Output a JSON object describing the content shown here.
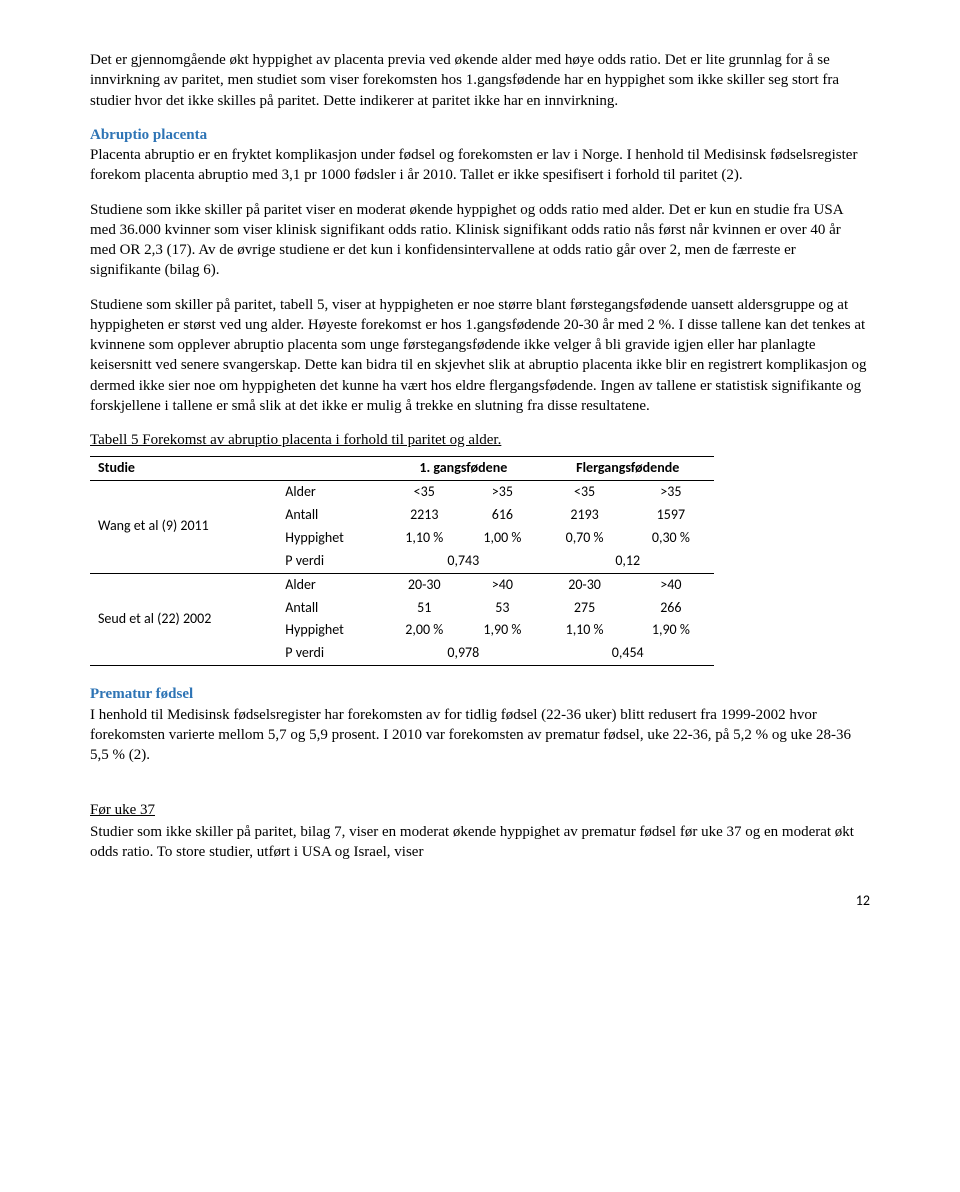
{
  "para1": "Det er gjennomgående økt hyppighet av placenta previa ved økende alder med høye odds ratio. Det er lite grunnlag for å se innvirkning av paritet, men studiet som viser forekomsten hos 1.gangsfødende har en hyppighet som ikke skiller seg stort fra studier hvor det ikke skilles på paritet. Dette indikerer at paritet ikke har en innvirkning.",
  "heading1": "Abruptio placenta",
  "para2": "Placenta abruptio er en fryktet komplikasjon under fødsel og forekomsten er lav i Norge. I henhold til Medisinsk fødselsregister forekom placenta abruptio med 3,1 pr 1000 fødsler i år 2010. Tallet er ikke spesifisert i forhold til paritet (2).",
  "para3": "Studiene som ikke skiller på paritet viser en moderat økende hyppighet og odds ratio med alder. Det er kun en studie fra USA med 36.000 kvinner som viser klinisk signifikant odds ratio. Klinisk signifikant odds ratio nås først når kvinnen er over 40 år med OR 2,3 (17). Av de øvrige studiene er det kun i konfidensintervallene at odds ratio går over 2, men de færreste er signifikante (bilag 6).",
  "para4": "Studiene som skiller på paritet, tabell 5, viser at hyppigheten er noe større blant førstegangsfødende uansett aldersgruppe og at hyppigheten er størst ved ung alder. Høyeste forekomst er hos 1.gangsfødende  20-30 år med 2 %. I disse tallene kan det tenkes at kvinnene som opplever abruptio placenta som unge førstegangsfødende ikke velger å bli gravide igjen eller har planlagte keisersnitt ved senere svangerskap. Dette kan bidra til en skjevhet slik at abruptio placenta ikke blir en registrert komplikasjon og dermed ikke sier noe om hyppigheten det kunne ha vært hos eldre flergangsfødende. Ingen av tallene er statistisk signifikante og forskjellene i tallene er små slik at det ikke er mulig å trekke en slutning fra disse resultatene.",
  "tableCaption": "Tabell 5 Forekomst av abruptio placenta i forhold til paritet og alder.",
  "table": {
    "head": {
      "c1": "Studie",
      "c2": "",
      "c3": "1. gangsfødene",
      "c4": "Flergangsfødende"
    },
    "rows": [
      {
        "study": "Wang et al (9) 2011",
        "label": "Alder",
        "a": "<35",
        "b": ">35",
        "c": "<35",
        "d": ">35"
      },
      {
        "study": "",
        "label": "Antall",
        "a": "2213",
        "b": "616",
        "c": "2193",
        "d": "1597"
      },
      {
        "study": "",
        "label": "Hyppighet",
        "a": "1,10 %",
        "b": "1,00 %",
        "c": "0,70 %",
        "d": "0,30 %"
      },
      {
        "study": "",
        "label": "P verdi",
        "a": "",
        "b": "0,743",
        "c": "",
        "d": "0,12"
      },
      {
        "study": "Seud et al (22) 2002",
        "label": "Alder",
        "a": "20-30",
        "b": ">40",
        "c": "20-30",
        "d": ">40"
      },
      {
        "study": "",
        "label": "Antall",
        "a": "51",
        "b": "53",
        "c": "275",
        "d": "266"
      },
      {
        "study": "",
        "label": "Hyppighet",
        "a": "2,00 %",
        "b": "1,90 %",
        "c": "1,10 %",
        "d": "1,90 %"
      },
      {
        "study": "",
        "label": "P verdi",
        "a": "",
        "b": "0,978",
        "c": "",
        "d": "0,454"
      }
    ]
  },
  "heading2": "Prematur fødsel",
  "para5": "I henhold til Medisinsk fødselsregister har forekomsten av for tidlig fødsel (22-36 uker) blitt redusert fra 1999-2002 hvor forekomsten varierte mellom 5,7 og 5,9 prosent. I 2010 var forekomsten av prematur fødsel, uke 22-36, på 5,2 % og uke 28-36 5,5 % (2).",
  "subheading": "Før uke 37",
  "para6": "Studier som ikke skiller på paritet, bilag 7, viser en moderat økende hyppighet av prematur fødsel før uke 37 og en moderat økt odds ratio. To store studier, utført i USA og Israel, viser",
  "pageNum": "12"
}
